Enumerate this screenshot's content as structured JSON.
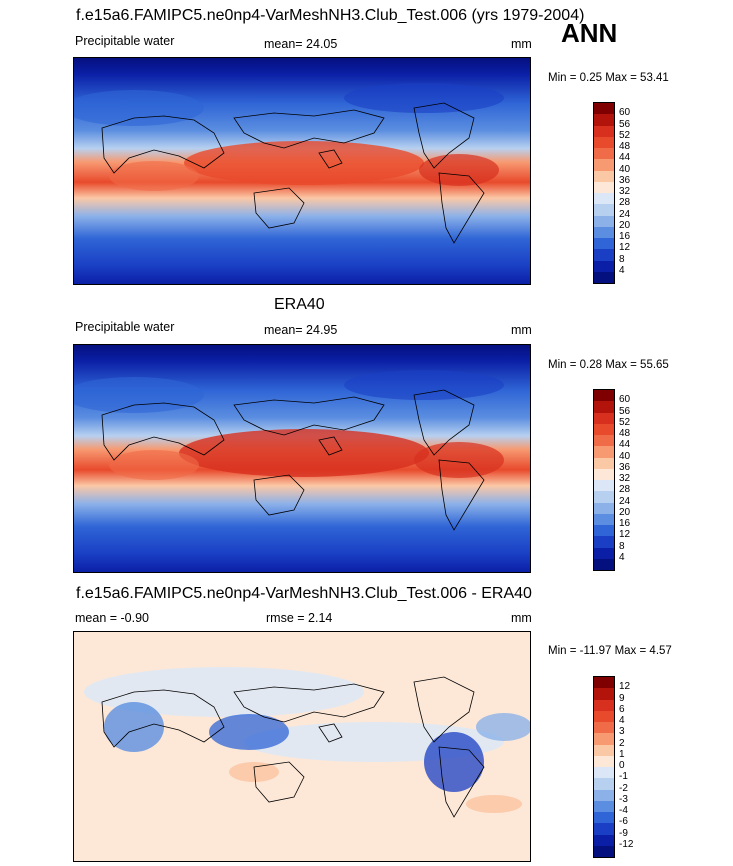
{
  "season": "ANN",
  "panels": [
    {
      "title": "f.e15a6.FAMIPC5.ne0np4-VarMeshNH3.Club_Test.006 (yrs 1979-2004)",
      "variable": "Precipitable water",
      "stat": "mean=  24.05",
      "units": "mm",
      "minmax": "Min =   0.25 Max =  53.41"
    },
    {
      "title": "ERA40",
      "variable": "Precipitable water",
      "stat": "mean=  24.95",
      "units": "mm",
      "minmax": "Min =   0.28 Max =  55.65"
    },
    {
      "title": "f.e15a6.FAMIPC5.ne0np4-VarMeshNH3.Club_Test.006 - ERA40",
      "mean": "mean =  -0.90",
      "rmse": "rmse =   2.14",
      "units": "mm",
      "minmax": "Min = -11.97 Max =   4.57"
    }
  ],
  "colorbar_abs": {
    "labels": [
      "60",
      "56",
      "52",
      "48",
      "44",
      "40",
      "36",
      "32",
      "28",
      "24",
      "20",
      "16",
      "12",
      "8",
      "4"
    ],
    "colors": [
      "#7f0000",
      "#b2130a",
      "#d7301f",
      "#e84a2c",
      "#f06b47",
      "#f79a72",
      "#fbc8a6",
      "#fde8d8",
      "#dbe7f7",
      "#b7d0f0",
      "#8cb1e9",
      "#5b8ee0",
      "#2f65d6",
      "#1a3fc4",
      "#0b1fa6",
      "#05107f"
    ]
  },
  "colorbar_diff": {
    "labels": [
      "12",
      "9",
      "6",
      "4",
      "3",
      "2",
      "1",
      "0",
      "-1",
      "-2",
      "-3",
      "-4",
      "-6",
      "-9",
      "-12"
    ],
    "colors": [
      "#7f0000",
      "#b2130a",
      "#d7301f",
      "#e84a2c",
      "#f06b47",
      "#f79a72",
      "#fbc8a6",
      "#fde8d8",
      "#dbe7f7",
      "#b7d0f0",
      "#8cb1e9",
      "#5b8ee0",
      "#2f65d6",
      "#1a3fc4",
      "#0b1fa6",
      "#05107f"
    ]
  }
}
